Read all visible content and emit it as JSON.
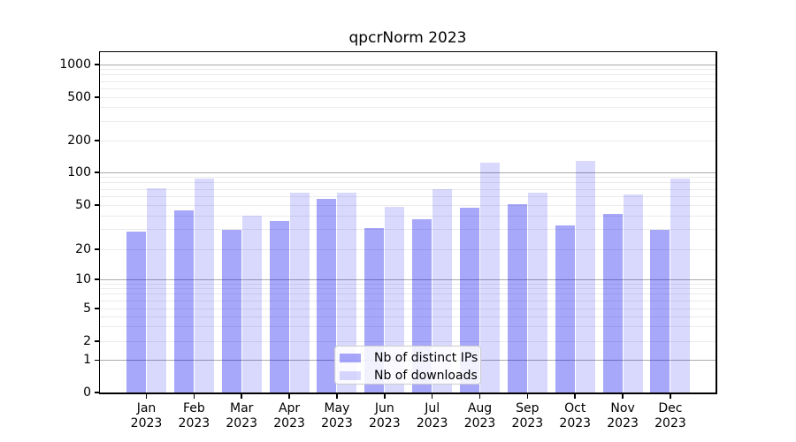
{
  "chart_data": {
    "type": "bar",
    "title": "qpcrNorm 2023",
    "x": {
      "months": [
        "Jan",
        "Feb",
        "Mar",
        "Apr",
        "May",
        "Jun",
        "Jul",
        "Aug",
        "Sep",
        "Oct",
        "Nov",
        "Dec"
      ],
      "year": "2023"
    },
    "series": [
      {
        "name": "Nb of distinct IPs",
        "color_hex": "#0000f0",
        "alpha": 0.34,
        "values": [
          29,
          45,
          30,
          36,
          57,
          31,
          37,
          47,
          51,
          33,
          42,
          30
        ]
      },
      {
        "name": "Nb of downloads",
        "color_hex": "#0000f0",
        "alpha": 0.15,
        "values": [
          72,
          88,
          40,
          65,
          65,
          48,
          70,
          123,
          65,
          128,
          63,
          88
        ]
      }
    ],
    "y_axis": {
      "scale": "symlog",
      "tick_labels": [
        "0",
        "1",
        "2",
        "5",
        "10",
        "20",
        "50",
        "100",
        "200",
        "500",
        "1000"
      ],
      "ticks": [
        0,
        1,
        2,
        5,
        10,
        20,
        50,
        100,
        200,
        500,
        1000
      ],
      "range": [
        0,
        1000
      ]
    },
    "grid": {
      "major_color": "#ababab",
      "minor_color": "#ebebeb",
      "major_values": [
        1,
        10,
        100,
        1000
      ],
      "minor_values": [
        2,
        3,
        4,
        5,
        6,
        7,
        8,
        9,
        20,
        30,
        40,
        50,
        60,
        70,
        80,
        90,
        200,
        300,
        400,
        500,
        600,
        700,
        800,
        900
      ]
    },
    "legend": {
      "position": "lower center",
      "entries": [
        "Nb of distinct IPs",
        "Nb of downloads"
      ]
    },
    "colors": {
      "background": "#ffffff",
      "text": "#000000",
      "spine": "#000000"
    }
  }
}
